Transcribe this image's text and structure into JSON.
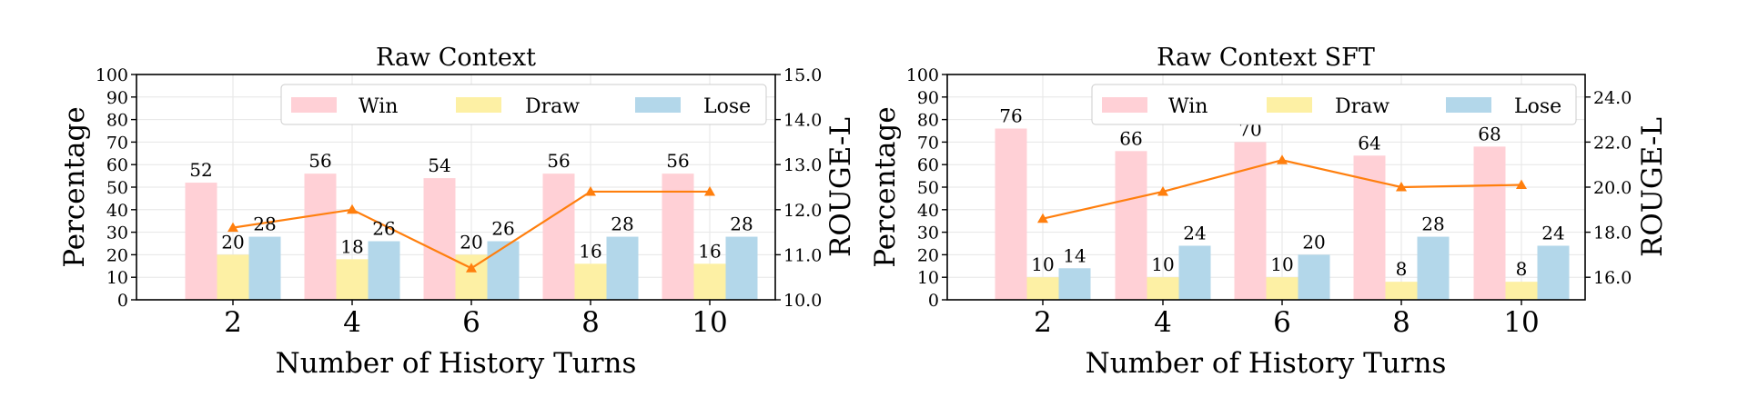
{
  "chart_data": [
    {
      "type": "bar",
      "title": "Raw Context",
      "xlabel": "Number of History Turns",
      "ylabel": "Percentage",
      "y2label": "ROUGE-L",
      "categories": [
        "2",
        "4",
        "6",
        "8",
        "10"
      ],
      "ylim": [
        0,
        100
      ],
      "yticks": [
        "0",
        "10",
        "20",
        "30",
        "40",
        "50",
        "60",
        "70",
        "80",
        "90",
        "100"
      ],
      "y2lim": [
        10.0,
        15.0
      ],
      "y2ticks": [
        "10.0",
        "11.0",
        "12.0",
        "13.0",
        "14.0",
        "15.0"
      ],
      "grid": true,
      "legend_position": "top-right",
      "series": [
        {
          "name": "Win",
          "values": [
            52,
            56,
            54,
            56,
            56
          ],
          "color": "#ffd0d6"
        },
        {
          "name": "Draw",
          "values": [
            20,
            18,
            20,
            16,
            16
          ],
          "color": "#fdf0a4"
        },
        {
          "name": "Lose",
          "values": [
            28,
            26,
            26,
            28,
            28
          ],
          "color": "#b3d7ea"
        }
      ],
      "line": {
        "axis": "right",
        "values": [
          11.6,
          12.0,
          10.7,
          12.4,
          12.4
        ],
        "color": "#ff7f0e",
        "marker": "triangle"
      }
    },
    {
      "type": "bar",
      "title": "Raw Context SFT",
      "xlabel": "Number of History Turns",
      "ylabel": "Percentage",
      "y2label": "ROUGE-L",
      "categories": [
        "2",
        "4",
        "6",
        "8",
        "10"
      ],
      "ylim": [
        0,
        100
      ],
      "yticks": [
        "0",
        "10",
        "20",
        "30",
        "40",
        "50",
        "60",
        "70",
        "80",
        "90",
        "100"
      ],
      "y2lim": [
        15.0,
        25.0
      ],
      "y2ticks": [
        "16.0",
        "18.0",
        "20.0",
        "22.0",
        "24.0"
      ],
      "grid": true,
      "legend_position": "top-right",
      "series": [
        {
          "name": "Win",
          "values": [
            76,
            66,
            70,
            64,
            68
          ],
          "color": "#ffd0d6"
        },
        {
          "name": "Draw",
          "values": [
            10,
            10,
            10,
            8,
            8
          ],
          "color": "#fdf0a4"
        },
        {
          "name": "Lose",
          "values": [
            14,
            24,
            20,
            28,
            24
          ],
          "color": "#b3d7ea"
        }
      ],
      "line": {
        "axis": "right",
        "values": [
          18.6,
          19.8,
          21.2,
          20.0,
          20.1
        ],
        "color": "#ff7f0e",
        "marker": "triangle"
      }
    }
  ]
}
